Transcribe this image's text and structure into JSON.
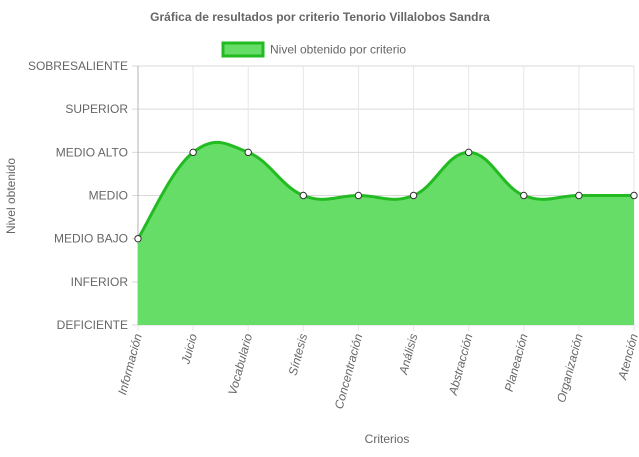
{
  "chart_data": {
    "type": "area",
    "title": "Gráfica de resultados por criterio Tenorio Villalobos Sandra",
    "xlabel": "Criterios",
    "ylabel": "Nivel obtenido",
    "legend_position": "top-center",
    "grid": true,
    "y_levels": [
      "DEFICIENTE",
      "INFERIOR",
      "MEDIO BAJO",
      "MEDIO",
      "MEDIO ALTO",
      "SUPERIOR",
      "SOBRESALIENTE"
    ],
    "ylim": [
      0,
      6
    ],
    "categories": [
      "Información",
      "Juicio",
      "Vocabulario",
      "Síntesis",
      "Concentración",
      "Análisis",
      "Abstracción",
      "Planeación",
      "Organización",
      "Atención"
    ],
    "series": [
      {
        "name": "Nivel obtenido por criterio",
        "values": [
          2,
          4,
          4,
          3,
          3,
          3,
          4,
          3,
          3,
          3
        ],
        "fill_color": "#66dd66",
        "line_color": "#22bb22"
      }
    ]
  }
}
